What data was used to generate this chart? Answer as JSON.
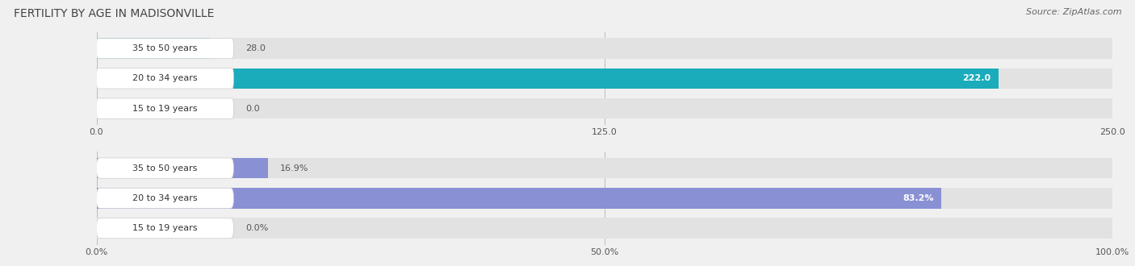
{
  "title": "FERTILITY BY AGE IN MADISONVILLE",
  "source": "Source: ZipAtlas.com",
  "top_chart": {
    "categories": [
      "15 to 19 years",
      "20 to 34 years",
      "35 to 50 years"
    ],
    "values": [
      0.0,
      222.0,
      28.0
    ],
    "max_value": 250.0,
    "tick_values": [
      0.0,
      125.0,
      250.0
    ],
    "tick_labels": [
      "0.0",
      "125.0",
      "250.0"
    ],
    "bar_color": "#1AACBB",
    "label_color_inside": "#ffffff",
    "label_color_outside": "#555555"
  },
  "bottom_chart": {
    "categories": [
      "15 to 19 years",
      "20 to 34 years",
      "35 to 50 years"
    ],
    "values": [
      0.0,
      83.2,
      16.9
    ],
    "max_value": 100.0,
    "tick_values": [
      0.0,
      50.0,
      100.0
    ],
    "tick_labels": [
      "0.0%",
      "50.0%",
      "100.0%"
    ],
    "bar_color": "#8A90D4",
    "label_color_inside": "#ffffff",
    "label_color_outside": "#555555"
  },
  "background_color": "#f0f0f0",
  "bar_bg_color": "#e2e2e2",
  "label_bg_color": "#ffffff",
  "title_fontsize": 10,
  "label_fontsize": 8,
  "tick_fontsize": 8,
  "source_fontsize": 8
}
